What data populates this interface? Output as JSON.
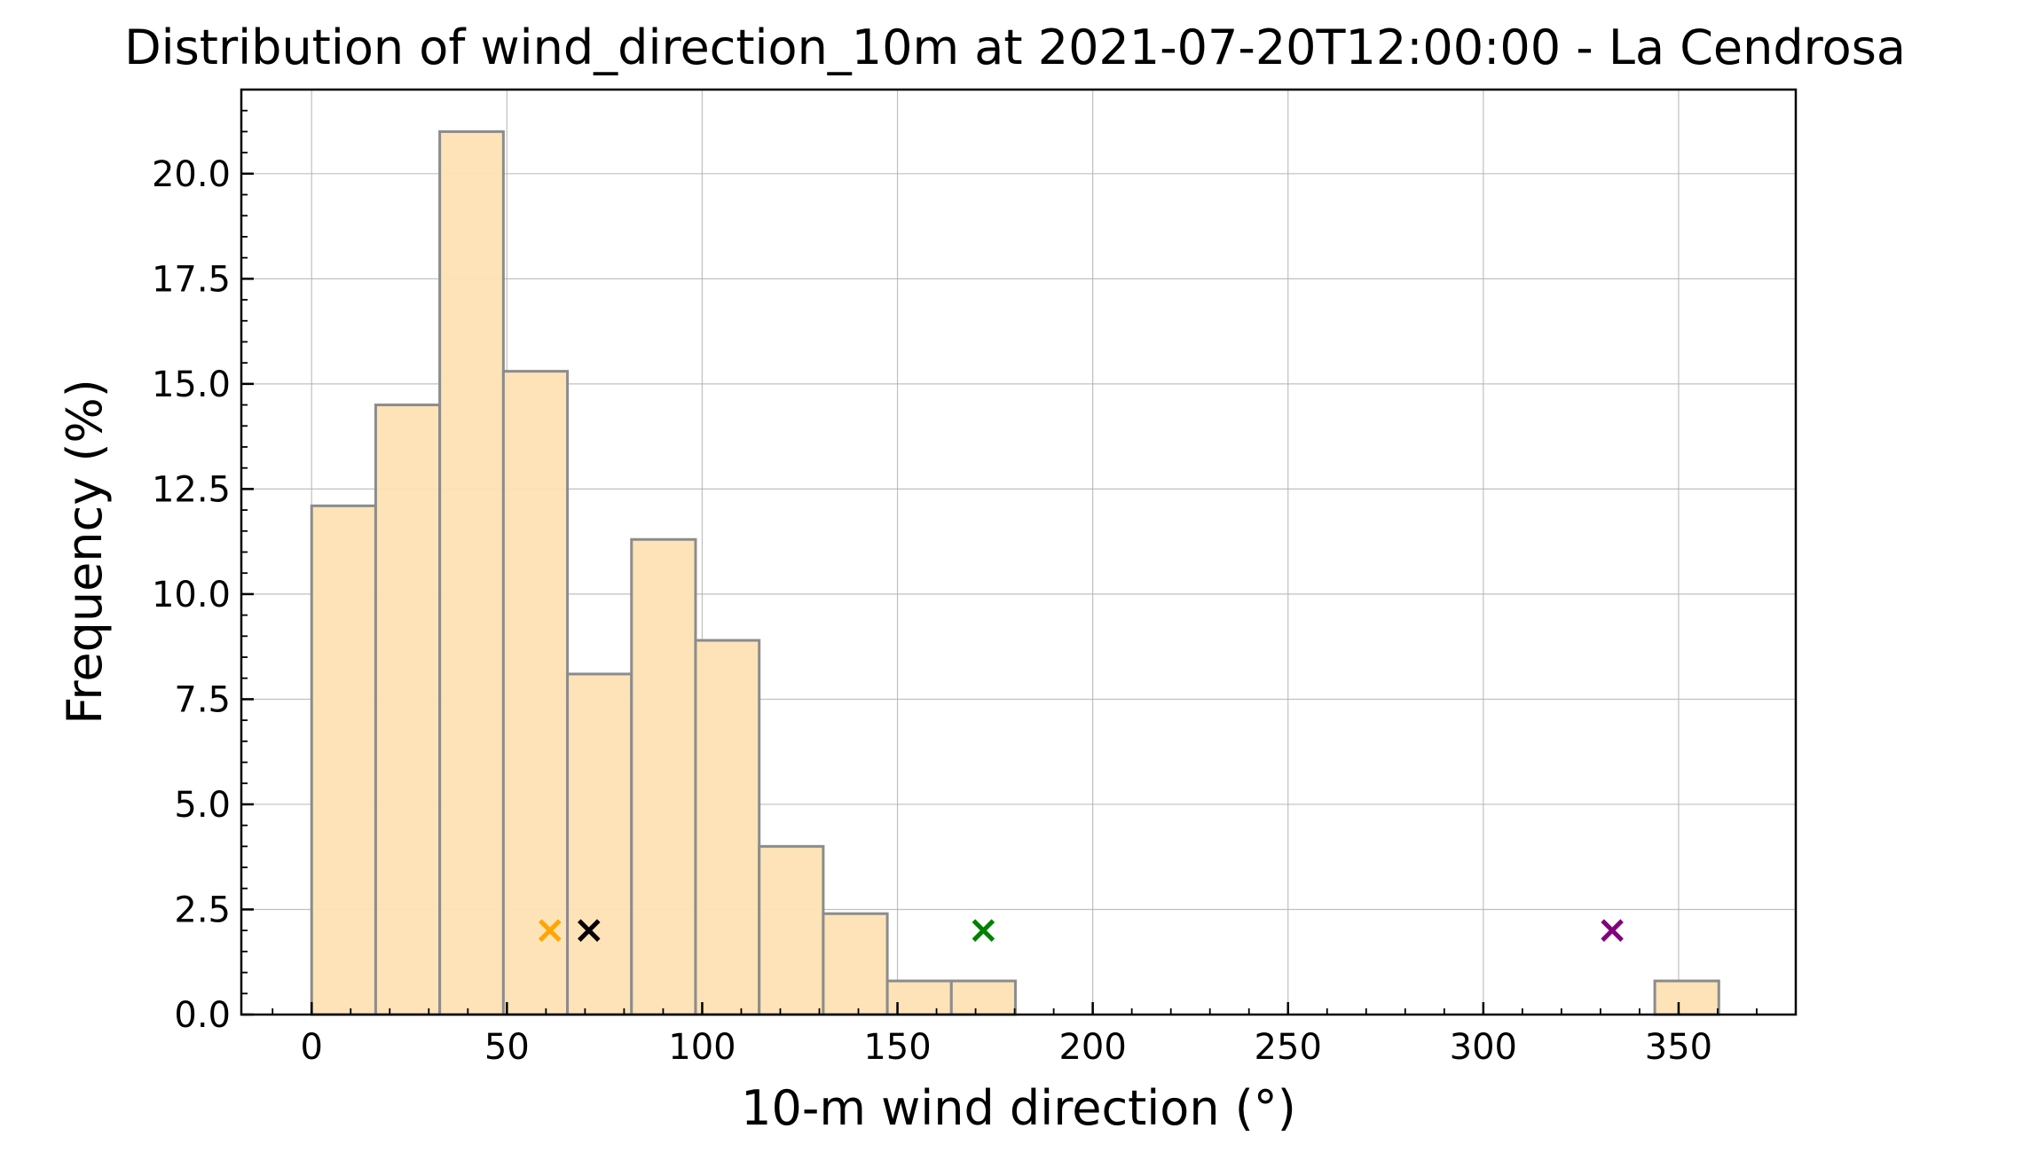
{
  "chart_data": {
    "type": "bar",
    "title": "Distribution of wind_direction_10m at 2021-07-20T12:00:00 - La Cendrosa",
    "xlabel": "10-m wind direction (°)",
    "ylabel": "Frequency (%)",
    "xlim": [
      -18,
      380
    ],
    "ylim": [
      0,
      22
    ],
    "xticks": [
      0,
      50,
      100,
      150,
      200,
      250,
      300,
      350
    ],
    "yticks": [
      0.0,
      2.5,
      5.0,
      7.5,
      10.0,
      12.5,
      15.0,
      17.5,
      20.0
    ],
    "xtick_labels": [
      "0",
      "50",
      "100",
      "150",
      "200",
      "250",
      "300",
      "350"
    ],
    "ytick_labels": [
      "0.0",
      "2.5",
      "5.0",
      "7.5",
      "10.0",
      "12.5",
      "15.0",
      "17.5",
      "20.0"
    ],
    "grid": true,
    "bar_color": "#fde2b3",
    "bar_edge_color": "#8c8c8c",
    "bins": [
      {
        "x0": 0.0,
        "x1": 16.4,
        "value": 12.1
      },
      {
        "x0": 16.4,
        "x1": 32.8,
        "value": 14.5
      },
      {
        "x0": 32.8,
        "x1": 49.1,
        "value": 21.0
      },
      {
        "x0": 49.1,
        "x1": 65.5,
        "value": 15.3
      },
      {
        "x0": 65.5,
        "x1": 81.9,
        "value": 8.1
      },
      {
        "x0": 81.9,
        "x1": 98.3,
        "value": 11.3
      },
      {
        "x0": 98.3,
        "x1": 114.6,
        "value": 8.9
      },
      {
        "x0": 114.6,
        "x1": 131.0,
        "value": 4.0
      },
      {
        "x0": 131.0,
        "x1": 147.4,
        "value": 2.4
      },
      {
        "x0": 147.4,
        "x1": 163.8,
        "value": 0.8
      },
      {
        "x0": 163.8,
        "x1": 180.2,
        "value": 0.8
      },
      {
        "x0": 180.2,
        "x1": 196.5,
        "value": 0
      },
      {
        "x0": 196.5,
        "x1": 212.9,
        "value": 0
      },
      {
        "x0": 212.9,
        "x1": 229.3,
        "value": 0
      },
      {
        "x0": 229.3,
        "x1": 245.7,
        "value": 0
      },
      {
        "x0": 245.7,
        "x1": 262.0,
        "value": 0
      },
      {
        "x0": 262.0,
        "x1": 278.4,
        "value": 0
      },
      {
        "x0": 278.4,
        "x1": 294.8,
        "value": 0
      },
      {
        "x0": 294.8,
        "x1": 311.2,
        "value": 0
      },
      {
        "x0": 311.2,
        "x1": 327.5,
        "value": 0
      },
      {
        "x0": 327.5,
        "x1": 343.9,
        "value": 0
      },
      {
        "x0": 343.9,
        "x1": 360.3,
        "value": 0.8
      }
    ],
    "markers": [
      {
        "x": 61,
        "y": 2.0,
        "color": "#ffa500"
      },
      {
        "x": 71,
        "y": 2.0,
        "color": "#000000"
      },
      {
        "x": 172,
        "y": 2.0,
        "color": "#008000"
      },
      {
        "x": 333,
        "y": 2.0,
        "color": "#800080"
      }
    ]
  }
}
